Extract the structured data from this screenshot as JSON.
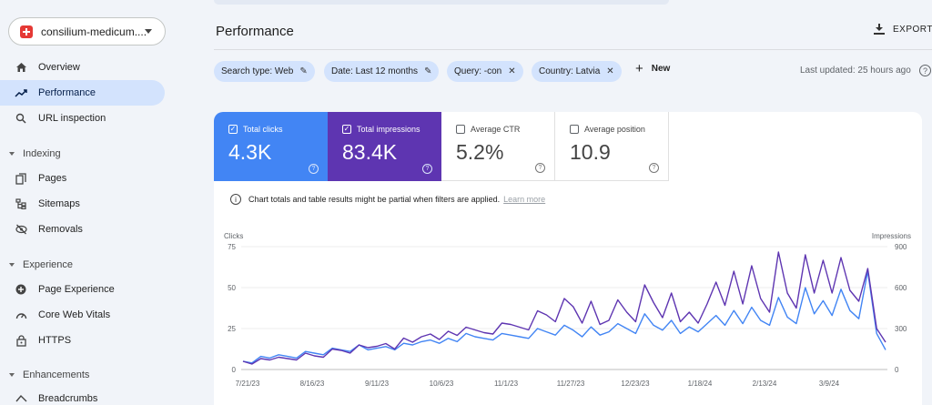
{
  "sidebar": {
    "property": "consilium-medicum....",
    "items": [
      {
        "label": "Overview",
        "icon": "home-icon"
      },
      {
        "label": "Performance",
        "icon": "trending-up-icon"
      },
      {
        "label": "URL inspection",
        "icon": "search-icon"
      }
    ],
    "sections": [
      {
        "title": "Indexing",
        "items": [
          {
            "label": "Pages",
            "icon": "pages-icon"
          },
          {
            "label": "Sitemaps",
            "icon": "sitemap-icon"
          },
          {
            "label": "Removals",
            "icon": "removals-icon"
          }
        ]
      },
      {
        "title": "Experience",
        "items": [
          {
            "label": "Page Experience",
            "icon": "page-experience-icon"
          },
          {
            "label": "Core Web Vitals",
            "icon": "gauge-icon"
          },
          {
            "label": "HTTPS",
            "icon": "lock-icon"
          }
        ]
      },
      {
        "title": "Enhancements",
        "items": [
          {
            "label": "Breadcrumbs",
            "icon": "breadcrumbs-icon"
          }
        ]
      }
    ]
  },
  "header": {
    "title": "Performance",
    "export_label": "EXPORT"
  },
  "filters": [
    {
      "label": "Search type: Web",
      "action": "edit"
    },
    {
      "label": "Date: Last 12 months",
      "action": "edit"
    },
    {
      "label": "Query: -con",
      "action": "remove"
    },
    {
      "label": "Country: Latvia",
      "action": "remove"
    }
  ],
  "new_label": "New",
  "last_updated": "Last updated: 25 hours ago",
  "metrics": [
    {
      "label": "Total clicks",
      "value": "4.3K",
      "checked": true,
      "color": "#4285f4"
    },
    {
      "label": "Total impressions",
      "value": "83.4K",
      "checked": true,
      "color": "#5e35b1"
    },
    {
      "label": "Average CTR",
      "value": "5.2%",
      "checked": false
    },
    {
      "label": "Average position",
      "value": "10.9",
      "checked": false
    }
  ],
  "notice": {
    "text": "Chart totals and table results might be partial when filters are applied.",
    "link": "Learn more"
  },
  "chart_data": {
    "type": "line",
    "left_axis_label": "Clicks",
    "right_axis_label": "Impressions",
    "left_ticks": [
      "75",
      "50",
      "25",
      "0"
    ],
    "right_ticks": [
      "900",
      "600",
      "300",
      "0"
    ],
    "ylim_left": [
      0,
      75
    ],
    "ylim_right": [
      0,
      900
    ],
    "x_ticks": [
      "7/21/23",
      "8/16/23",
      "9/11/23",
      "10/6/23",
      "11/1/23",
      "11/27/23",
      "12/23/23",
      "1/18/24",
      "2/13/24",
      "3/9/24"
    ],
    "series": [
      {
        "name": "Clicks",
        "axis": "left",
        "color": "#4285f4",
        "values": [
          5,
          4,
          8,
          7,
          9,
          8,
          7,
          11,
          10,
          9,
          13,
          12,
          11,
          15,
          12,
          13,
          14,
          12,
          16,
          15,
          17,
          18,
          16,
          19,
          17,
          22,
          20,
          19,
          18,
          22,
          21,
          20,
          19,
          25,
          23,
          21,
          27,
          24,
          20,
          26,
          21,
          23,
          28,
          25,
          22,
          34,
          27,
          24,
          30,
          22,
          26,
          23,
          28,
          33,
          27,
          36,
          28,
          38,
          30,
          27,
          44,
          32,
          28,
          50,
          34,
          42,
          33,
          49,
          36,
          31,
          60,
          22,
          12
        ]
      },
      {
        "name": "Impressions",
        "axis": "right",
        "color": "#5e35b1",
        "values": [
          60,
          40,
          80,
          70,
          90,
          80,
          70,
          120,
          100,
          90,
          150,
          140,
          120,
          180,
          160,
          170,
          190,
          150,
          230,
          200,
          240,
          260,
          220,
          280,
          250,
          310,
          290,
          270,
          260,
          340,
          330,
          310,
          290,
          430,
          400,
          350,
          520,
          460,
          340,
          500,
          330,
          360,
          510,
          420,
          350,
          620,
          490,
          380,
          560,
          350,
          420,
          340,
          480,
          640,
          470,
          720,
          480,
          760,
          520,
          420,
          860,
          560,
          450,
          840,
          560,
          800,
          560,
          820,
          580,
          500,
          740,
          300,
          200
        ]
      }
    ]
  }
}
